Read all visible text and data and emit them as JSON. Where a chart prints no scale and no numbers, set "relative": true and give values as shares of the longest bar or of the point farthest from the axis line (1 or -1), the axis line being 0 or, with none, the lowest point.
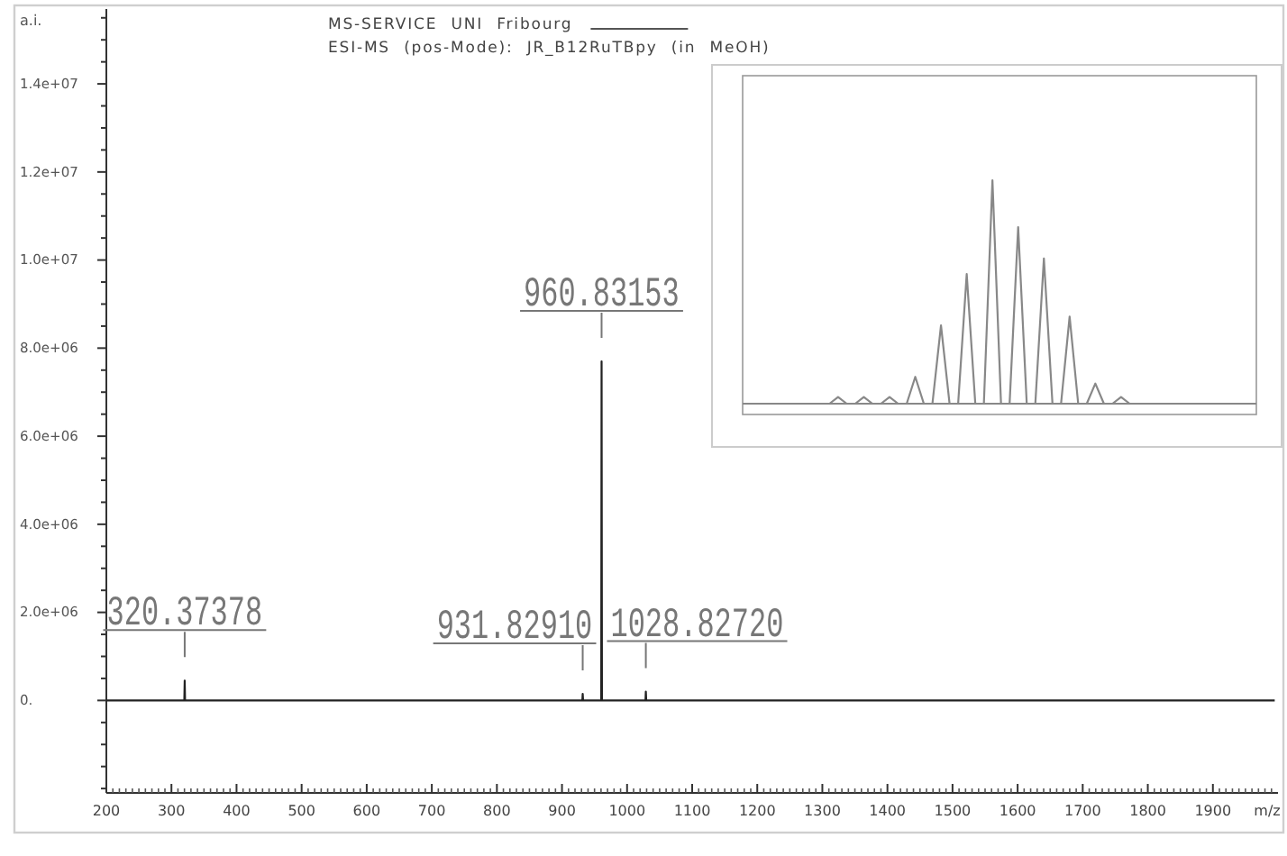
{
  "chart_data": [
    {
      "type": "line",
      "title": "MS-SERVICE UNI Fribourg",
      "subtitle": "ESI-MS (pos-Mode): JR_B12RuTBpy (in MeOH)",
      "xlabel": "m/z",
      "ylabel": "a.i.",
      "x": [
        200,
        319.8,
        320.37378,
        320.9,
        931.3,
        931.8291,
        932.4,
        960.3,
        960.83153,
        961.4,
        1028.3,
        1028.8272,
        1029.4,
        1995
      ],
      "values": [
        0,
        0,
        450000,
        0,
        0,
        150000,
        0,
        0,
        7700000,
        0,
        0,
        200000,
        0,
        0
      ],
      "color": "#222222",
      "xlim": [
        200,
        2000
      ],
      "ylim": [
        -2100000,
        15700000
      ],
      "xticks": [
        200,
        {
          "value": 210,
          "label": null
        },
        {
          "value": 220,
          "label": null
        },
        {
          "value": 230,
          "label": null
        },
        {
          "value": 240,
          "label": null
        },
        {
          "value": 250,
          "label": null
        },
        {
          "value": 260,
          "label": null
        },
        {
          "value": 270,
          "label": null
        },
        {
          "value": 280,
          "label": null
        },
        {
          "value": 290,
          "label": null
        },
        300,
        {
          "value": 310,
          "label": null
        },
        {
          "value": 320,
          "label": null
        },
        {
          "value": 330,
          "label": null
        },
        {
          "value": 340,
          "label": null
        },
        {
          "value": 350,
          "label": null
        },
        {
          "value": 360,
          "label": null
        },
        {
          "value": 370,
          "label": null
        },
        {
          "value": 380,
          "label": null
        },
        {
          "value": 390,
          "label": null
        },
        400,
        {
          "value": 410,
          "label": null
        },
        {
          "value": 420,
          "label": null
        },
        {
          "value": 430,
          "label": null
        },
        {
          "value": 440,
          "label": null
        },
        {
          "value": 450,
          "label": null
        },
        {
          "value": 460,
          "label": null
        },
        {
          "value": 470,
          "label": null
        },
        {
          "value": 480,
          "label": null
        },
        {
          "value": 490,
          "label": null
        },
        500,
        {
          "value": 510,
          "label": null
        },
        {
          "value": 520,
          "label": null
        },
        {
          "value": 530,
          "label": null
        },
        {
          "value": 540,
          "label": null
        },
        {
          "value": 550,
          "label": null
        },
        {
          "value": 560,
          "label": null
        },
        {
          "value": 570,
          "label": null
        },
        {
          "value": 580,
          "label": null
        },
        {
          "value": 590,
          "label": null
        },
        600,
        {
          "value": 610,
          "label": null
        },
        {
          "value": 620,
          "label": null
        },
        {
          "value": 630,
          "label": null
        },
        {
          "value": 640,
          "label": null
        },
        {
          "value": 650,
          "label": null
        },
        {
          "value": 660,
          "label": null
        },
        {
          "value": 670,
          "label": null
        },
        {
          "value": 680,
          "label": null
        },
        {
          "value": 690,
          "label": null
        },
        700,
        {
          "value": 710,
          "label": null
        },
        {
          "value": 720,
          "label": null
        },
        {
          "value": 730,
          "label": null
        },
        {
          "value": 740,
          "label": null
        },
        {
          "value": 750,
          "label": null
        },
        {
          "value": 760,
          "label": null
        },
        {
          "value": 770,
          "label": null
        },
        {
          "value": 780,
          "label": null
        },
        {
          "value": 790,
          "label": null
        },
        800,
        {
          "value": 810,
          "label": null
        },
        {
          "value": 820,
          "label": null
        },
        {
          "value": 830,
          "label": null
        },
        {
          "value": 840,
          "label": null
        },
        {
          "value": 850,
          "label": null
        },
        {
          "value": 860,
          "label": null
        },
        {
          "value": 870,
          "label": null
        },
        {
          "value": 880,
          "label": null
        },
        {
          "value": 890,
          "label": null
        },
        900,
        {
          "value": 910,
          "label": null
        },
        {
          "value": 920,
          "label": null
        },
        {
          "value": 930,
          "label": null
        },
        {
          "value": 940,
          "label": null
        },
        {
          "value": 950,
          "label": null
        },
        {
          "value": 960,
          "label": null
        },
        {
          "value": 970,
          "label": null
        },
        {
          "value": 980,
          "label": null
        },
        {
          "value": 990,
          "label": null
        },
        1000,
        {
          "value": 1010,
          "label": null
        },
        {
          "value": 1020,
          "label": null
        },
        {
          "value": 1030,
          "label": null
        },
        {
          "value": 1040,
          "label": null
        },
        {
          "value": 1050,
          "label": null
        },
        {
          "value": 1060,
          "label": null
        },
        {
          "value": 1070,
          "label": null
        },
        {
          "value": 1080,
          "label": null
        },
        {
          "value": 1090,
          "label": null
        },
        1100,
        {
          "value": 1110,
          "label": null
        },
        {
          "value": 1120,
          "label": null
        },
        {
          "value": 1130,
          "label": null
        },
        {
          "value": 1140,
          "label": null
        },
        {
          "value": 1150,
          "label": null
        },
        {
          "value": 1160,
          "label": null
        },
        {
          "value": 1170,
          "label": null
        },
        {
          "value": 1180,
          "label": null
        },
        {
          "value": 1190,
          "label": null
        },
        1200,
        {
          "value": 1210,
          "label": null
        },
        {
          "value": 1220,
          "label": null
        },
        {
          "value": 1230,
          "label": null
        },
        {
          "value": 1240,
          "label": null
        },
        {
          "value": 1250,
          "label": null
        },
        {
          "value": 1260,
          "label": null
        },
        {
          "value": 1270,
          "label": null
        },
        {
          "value": 1280,
          "label": null
        },
        {
          "value": 1290,
          "label": null
        },
        1300,
        {
          "value": 1310,
          "label": null
        },
        {
          "value": 1320,
          "label": null
        },
        {
          "value": 1330,
          "label": null
        },
        {
          "value": 1340,
          "label": null
        },
        {
          "value": 1350,
          "label": null
        },
        {
          "value": 1360,
          "label": null
        },
        {
          "value": 1370,
          "label": null
        },
        {
          "value": 1380,
          "label": null
        },
        {
          "value": 1390,
          "label": null
        },
        1400,
        {
          "value": 1410,
          "label": null
        },
        {
          "value": 1420,
          "label": null
        },
        {
          "value": 1430,
          "label": null
        },
        {
          "value": 1440,
          "label": null
        },
        {
          "value": 1450,
          "label": null
        },
        {
          "value": 1460,
          "label": null
        },
        {
          "value": 1470,
          "label": null
        },
        {
          "value": 1480,
          "label": null
        },
        {
          "value": 1490,
          "label": null
        },
        1500,
        {
          "value": 1510,
          "label": null
        },
        {
          "value": 1520,
          "label": null
        },
        {
          "value": 1530,
          "label": null
        },
        {
          "value": 1540,
          "label": null
        },
        {
          "value": 1550,
          "label": null
        },
        {
          "value": 1560,
          "label": null
        },
        {
          "value": 1570,
          "label": null
        },
        {
          "value": 1580,
          "label": null
        },
        {
          "value": 1590,
          "label": null
        },
        1600,
        {
          "value": 1610,
          "label": null
        },
        {
          "value": 1620,
          "label": null
        },
        {
          "value": 1630,
          "label": null
        },
        {
          "value": 1640,
          "label": null
        },
        {
          "value": 1650,
          "label": null
        },
        {
          "value": 1660,
          "label": null
        },
        {
          "value": 1670,
          "label": null
        },
        {
          "value": 1680,
          "label": null
        },
        {
          "value": 1690,
          "label": null
        },
        1700,
        {
          "value": 1710,
          "label": null
        },
        {
          "value": 1720,
          "label": null
        },
        {
          "value": 1730,
          "label": null
        },
        {
          "value": 1740,
          "label": null
        },
        {
          "value": 1750,
          "label": null
        },
        {
          "value": 1760,
          "label": null
        },
        {
          "value": 1770,
          "label": null
        },
        {
          "value": 1780,
          "label": null
        },
        {
          "value": 1790,
          "label": null
        },
        1800,
        {
          "value": 1810,
          "label": null
        },
        {
          "value": 1820,
          "label": null
        },
        {
          "value": 1830,
          "label": null
        },
        {
          "value": 1840,
          "label": null
        },
        {
          "value": 1850,
          "label": null
        },
        {
          "value": 1860,
          "label": null
        },
        {
          "value": 1870,
          "label": null
        },
        {
          "value": 1880,
          "label": null
        },
        {
          "value": 1890,
          "label": null
        },
        1900,
        {
          "value": 1910,
          "label": null
        },
        {
          "value": 1920,
          "label": null
        },
        {
          "value": 1930,
          "label": null
        },
        {
          "value": 1940,
          "label": null
        },
        {
          "value": 1950,
          "label": null
        },
        {
          "value": 1960,
          "label": null
        },
        {
          "value": 1970,
          "label": null
        },
        {
          "value": 1980,
          "label": null
        },
        {
          "value": 1990,
          "label": null
        }
      ],
      "yticks": [
        {
          "value": -2000000,
          "label": null
        },
        {
          "value": -1500000,
          "label": null
        },
        {
          "value": -1000000,
          "label": null
        },
        {
          "value": -500000,
          "label": null
        },
        {
          "value": 0,
          "label": "0."
        },
        {
          "value": 500000,
          "label": null
        },
        {
          "value": 1000000,
          "label": null
        },
        {
          "value": 1500000,
          "label": null
        },
        {
          "value": 2000000,
          "label": "2.0e+06"
        },
        {
          "value": 2500000,
          "label": null
        },
        {
          "value": 3000000,
          "label": null
        },
        {
          "value": 3500000,
          "label": null
        },
        {
          "value": 4000000,
          "label": "4.0e+06"
        },
        {
          "value": 4500000,
          "label": null
        },
        {
          "value": 5000000,
          "label": null
        },
        {
          "value": 5500000,
          "label": null
        },
        {
          "value": 6000000,
          "label": "6.0e+06"
        },
        {
          "value": 6500000,
          "label": null
        },
        {
          "value": 7000000,
          "label": null
        },
        {
          "value": 7500000,
          "label": null
        },
        {
          "value": 8000000,
          "label": "8.0e+06"
        },
        {
          "value": 8500000,
          "label": null
        },
        {
          "value": 9000000,
          "label": null
        },
        {
          "value": 9500000,
          "label": null
        },
        {
          "value": 10000000,
          "label": "1.0e+07"
        },
        {
          "value": 10500000,
          "label": null
        },
        {
          "value": 11000000,
          "label": null
        },
        {
          "value": 11500000,
          "label": null
        },
        {
          "value": 12000000,
          "label": "1.2e+07"
        },
        {
          "value": 12500000,
          "label": null
        },
        {
          "value": 13000000,
          "label": null
        },
        {
          "value": 13500000,
          "label": null
        },
        {
          "value": 14000000,
          "label": "1.4e+07"
        },
        {
          "value": 14500000,
          "label": null
        },
        {
          "value": 15000000,
          "label": null
        },
        {
          "value": 15500000,
          "label": null
        }
      ],
      "annotations": [
        {
          "text": "320.37378",
          "x": 320.37378,
          "y": 450000
        },
        {
          "text": "931.82910",
          "x": 931.8291,
          "y": 150000
        },
        {
          "text": "960.83153",
          "x": 960.83153,
          "y": 7700000
        },
        {
          "text": "1028.82720",
          "x": 1028.8272,
          "y": 200000
        }
      ]
    },
    {
      "type": "line",
      "relative": true,
      "categories": [
        null,
        null,
        null,
        null,
        null,
        null,
        null,
        null,
        null,
        null,
        null,
        null,
        null,
        null,
        null,
        null,
        null,
        null,
        null,
        null,
        null,
        null,
        null,
        null,
        null,
        null,
        null,
        null,
        null,
        null,
        null,
        null,
        null,
        null,
        null,
        null
      ],
      "values": [
        0,
        0.03,
        0,
        0,
        0.03,
        0,
        0,
        0.03,
        0,
        0,
        0.12,
        0,
        0,
        0.35,
        0,
        0,
        0.58,
        0,
        0,
        1,
        0,
        0,
        0.79,
        0,
        0,
        0.65,
        0,
        0,
        0.39,
        0,
        0,
        0.09,
        0,
        0,
        0.03,
        0
      ],
      "color": "#888888"
    }
  ]
}
